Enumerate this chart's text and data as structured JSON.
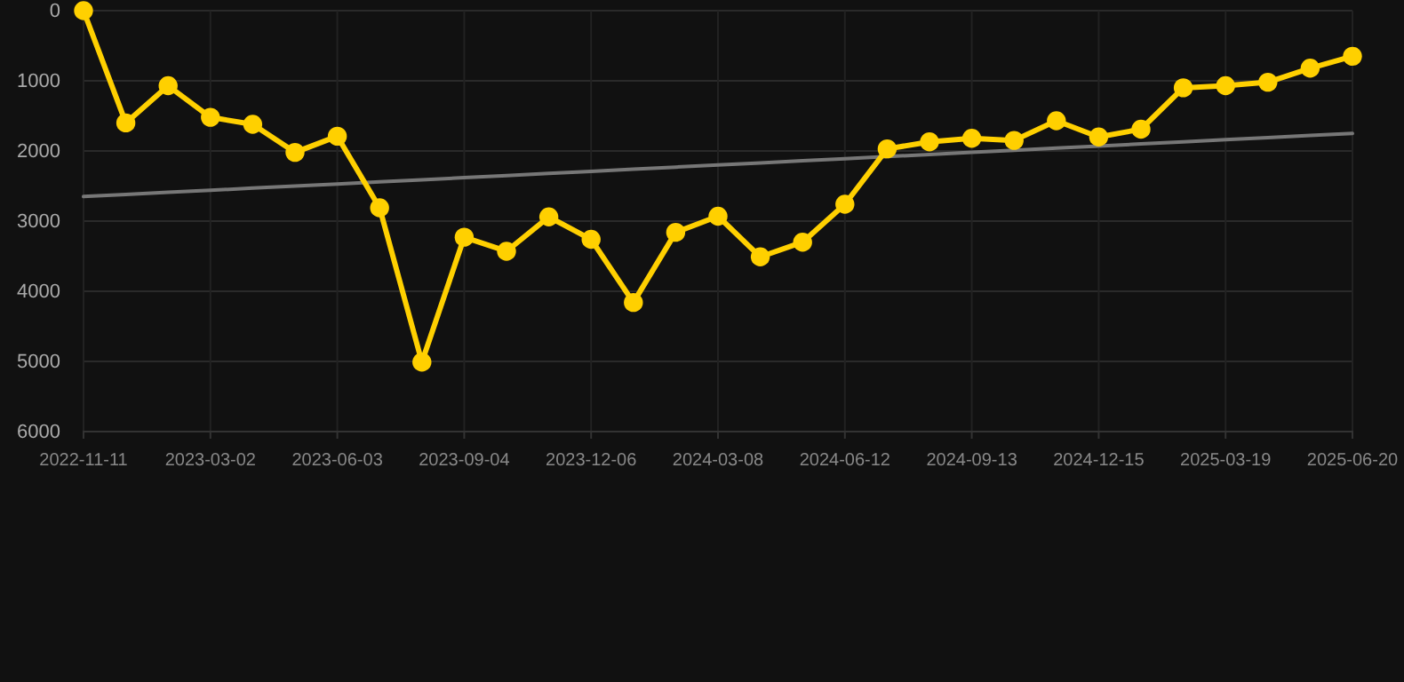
{
  "chart_data": {
    "type": "line",
    "categories": [
      "2022-11-11",
      null,
      null,
      "2023-03-02",
      null,
      null,
      "2023-06-03",
      null,
      null,
      "2023-09-04",
      null,
      null,
      "2023-12-06",
      null,
      null,
      "2024-03-08",
      null,
      null,
      "2024-06-12",
      null,
      null,
      "2024-09-13",
      null,
      null,
      "2024-12-15",
      null,
      null,
      "2025-03-19",
      null,
      null,
      "2025-06-20"
    ],
    "series": [
      {
        "color": "#ffd000",
        "values": [
          0,
          1600,
          1070,
          1520,
          1620,
          2020,
          1790,
          2810,
          5010,
          3230,
          3430,
          2940,
          3260,
          4160,
          3160,
          2930,
          3510,
          3300,
          2760,
          1970,
          1870,
          1820,
          1850,
          1570,
          1800,
          1690,
          1100,
          1070,
          1020,
          820,
          650
        ]
      },
      {
        "type": "line",
        "color": "#777777",
        "marker": "none",
        "values": [
          2650,
          2620,
          2590,
          2560,
          2530,
          2500,
          2470,
          2440,
          2410,
          2380,
          2350,
          2320,
          2290,
          2260,
          2230,
          2200,
          2170,
          2140,
          2110,
          2080,
          2050,
          2020,
          1990,
          1960,
          1930,
          1900,
          1870,
          1840,
          1810,
          1780,
          1750
        ]
      }
    ],
    "ylim": [
      6000,
      0
    ],
    "yticks": [
      0,
      1000,
      2000,
      3000,
      4000,
      5000,
      6000
    ],
    "grid": true,
    "marker": "circle",
    "line_style": "solid"
  }
}
